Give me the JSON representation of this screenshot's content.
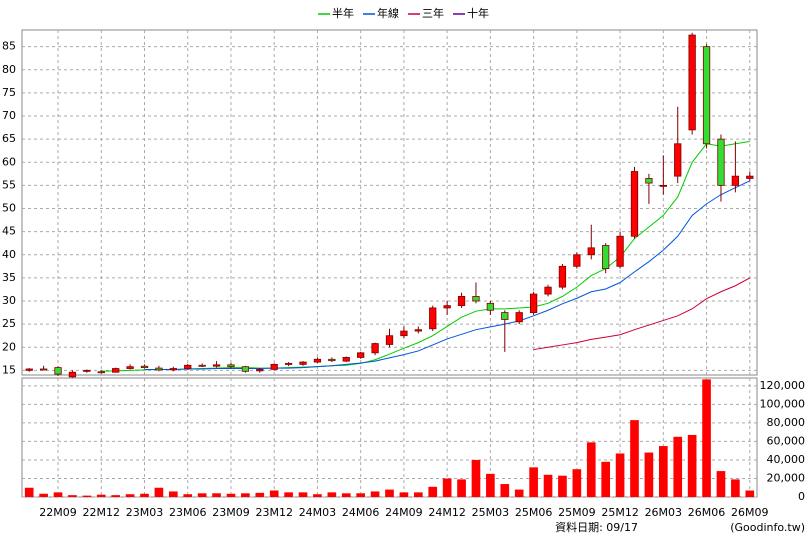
{
  "chart_data": {
    "type": "candlestick",
    "categories": [
      null,
      null,
      "22M09",
      null,
      null,
      "22M12",
      null,
      null,
      "23M03",
      null,
      null,
      "23M06",
      null,
      null,
      "23M09",
      null,
      null,
      "23M12",
      null,
      null,
      "24M03",
      null,
      null,
      "24M06",
      null,
      null,
      "24M09",
      null,
      null,
      "24M12",
      null,
      null,
      "25M03",
      null,
      null,
      "25M06",
      null,
      null,
      "25M09",
      null,
      null,
      "25M12",
      null,
      null,
      "26M03",
      null,
      null,
      "26M06",
      null,
      null,
      "26M09"
    ],
    "open": [
      15.0,
      15.3,
      15.6,
      13.6,
      14.8,
      14.7,
      14.6,
      15.4,
      15.9,
      15.5,
      15.1,
      15.4,
      16.1,
      15.9,
      16.2,
      15.8,
      14.9,
      15.2,
      16.3,
      16.3,
      16.8,
      17.4,
      17.0,
      17.8,
      18.8,
      20.6,
      22.5,
      23.5,
      24.0,
      28.5,
      29.0,
      31.0,
      29.5,
      27.5,
      25.5,
      27.5,
      31.5,
      33.0,
      37.5,
      40.0,
      42.0,
      37.5,
      44.0,
      56.5,
      55.0,
      57.0,
      67.0,
      85.0,
      65.0,
      55.0,
      56.5
    ],
    "high": [
      15.5,
      16.0,
      15.9,
      15.0,
      15.2,
      15.0,
      15.6,
      16.3,
      16.3,
      16.0,
      15.8,
      16.4,
      16.5,
      17.0,
      16.6,
      16.0,
      15.5,
      16.5,
      16.8,
      17.0,
      17.8,
      17.8,
      18.0,
      19.0,
      21.0,
      24.0,
      24.5,
      24.5,
      29.0,
      30.0,
      31.8,
      34.0,
      30.0,
      28.0,
      28.0,
      32.0,
      33.5,
      38.0,
      40.5,
      46.5,
      42.5,
      45.0,
      59.0,
      57.5,
      61.5,
      72.0,
      88.0,
      85.5,
      66.0,
      64.5,
      58.0
    ],
    "low": [
      14.7,
      15.0,
      13.8,
      13.4,
      14.5,
      14.3,
      14.5,
      15.2,
      15.4,
      14.8,
      14.8,
      15.1,
      15.7,
      15.6,
      15.4,
      14.5,
      14.5,
      15.0,
      15.9,
      16.0,
      16.5,
      16.8,
      16.8,
      17.5,
      18.3,
      20.0,
      22.0,
      23.0,
      23.5,
      27.0,
      28.5,
      29.5,
      27.0,
      19.0,
      25.0,
      27.0,
      31.0,
      32.5,
      37.0,
      39.0,
      36.0,
      37.0,
      43.5,
      51.0,
      53.0,
      55.5,
      66.0,
      63.0,
      51.5,
      53.5,
      56.0
    ],
    "close": [
      15.3,
      15.2,
      14.2,
      14.6,
      15.0,
      14.5,
      15.4,
      15.8,
      15.6,
      15.1,
      15.4,
      16.1,
      15.9,
      16.2,
      15.8,
      14.8,
      15.2,
      16.3,
      16.5,
      16.8,
      17.4,
      17.1,
      17.8,
      18.8,
      20.8,
      22.5,
      23.5,
      23.8,
      28.5,
      29.0,
      31.0,
      30.0,
      28.0,
      26.0,
      27.5,
      31.5,
      33.0,
      37.5,
      40.0,
      41.5,
      37.0,
      44.0,
      58.0,
      55.5,
      55.0,
      64.0,
      87.5,
      64.0,
      55.0,
      57.0,
      57.0
    ],
    "up_color": "#ff0000",
    "down_color": "#33dd33",
    "edge_color": "#800000",
    "series": [
      {
        "name": "半年",
        "color": "#00cc00",
        "values": [
          null,
          null,
          null,
          null,
          null,
          14.8,
          14.9,
          15.0,
          15.1,
          15.2,
          15.2,
          15.3,
          15.4,
          15.5,
          15.6,
          15.6,
          15.5,
          15.5,
          15.6,
          15.7,
          15.8,
          16.0,
          16.1,
          16.5,
          17.3,
          18.5,
          19.8,
          21.0,
          22.5,
          24.5,
          26.5,
          27.8,
          28.3,
          28.3,
          28.5,
          28.7,
          29.5,
          31,
          33,
          35.5,
          37,
          39.5,
          43.5,
          46,
          48.5,
          52.5,
          60,
          64,
          63.5,
          64,
          64.5
        ]
      },
      {
        "name": "年線",
        "color": "#0055dd",
        "values": [
          null,
          null,
          null,
          null,
          null,
          null,
          null,
          null,
          15.2,
          15.2,
          15.2,
          15.3,
          15.3,
          15.4,
          15.4,
          15.4,
          15.4,
          15.5,
          15.5,
          15.6,
          15.8,
          16.0,
          16.3,
          16.6,
          17,
          17.7,
          18.4,
          19.2,
          20.5,
          21.8,
          22.8,
          23.8,
          24.4,
          25.0,
          25.7,
          26.8,
          28,
          29.4,
          30.6,
          32,
          32.6,
          34,
          36.3,
          38.5,
          41,
          44,
          48.5,
          51,
          53,
          54.5,
          56
        ]
      },
      {
        "name": "三年",
        "color": "#cc0033",
        "values": [
          null,
          null,
          null,
          null,
          null,
          null,
          null,
          null,
          null,
          null,
          null,
          null,
          null,
          null,
          null,
          null,
          null,
          null,
          null,
          null,
          null,
          null,
          null,
          null,
          null,
          null,
          null,
          null,
          null,
          null,
          null,
          null,
          null,
          null,
          null,
          19.5,
          20,
          20.5,
          21,
          21.7,
          22.2,
          22.7,
          23.8,
          24.8,
          25.8,
          26.8,
          28.3,
          30.5,
          32,
          33.3,
          35
        ]
      },
      {
        "name": "十年",
        "color": "#660099",
        "values": [
          null,
          null,
          null,
          null,
          null,
          null,
          null,
          null,
          null,
          null,
          null,
          null,
          null,
          null,
          null,
          null,
          null,
          null,
          null,
          null,
          null,
          null,
          null,
          null,
          null,
          null,
          null,
          null,
          null,
          null,
          null,
          null,
          null,
          null,
          null,
          null,
          null,
          null,
          null,
          null,
          null,
          null,
          null,
          null,
          null,
          null,
          null,
          null,
          null,
          null,
          null
        ]
      }
    ],
    "ylim": [
      14,
      88.6
    ],
    "yticks": [
      15,
      20,
      25,
      30,
      35,
      40,
      45,
      50,
      55,
      60,
      65,
      70,
      75,
      80,
      85
    ],
    "grid": true,
    "volume": {
      "color": "#ff0000",
      "values": [
        10000,
        3500,
        5000,
        2000,
        1500,
        2500,
        2000,
        3000,
        3500,
        10000,
        6000,
        3000,
        4000,
        4000,
        3500,
        4000,
        4500,
        7000,
        5000,
        5000,
        3000,
        5000,
        4000,
        4000,
        6000,
        8000,
        5000,
        5000,
        11000,
        20000,
        19000,
        40000,
        25000,
        14000,
        8000,
        32000,
        24000,
        23000,
        30000,
        59000,
        38000,
        47000,
        83000,
        48000,
        55000,
        65000,
        67000,
        127000,
        28000,
        19000,
        7000
      ],
      "ylim": [
        0,
        128500
      ],
      "yticks": [
        0,
        {
          "value": 20000,
          "label": "20,000"
        },
        {
          "value": 40000,
          "label": "40,000"
        },
        {
          "value": 60000,
          "label": "60,000"
        },
        {
          "value": 80000,
          "label": "80,000"
        },
        {
          "value": 100000,
          "label": "100,000"
        },
        {
          "value": 120000,
          "label": "120,000"
        }
      ]
    },
    "note": "資料日期: 09/17",
    "source": "(Goodinfo.tw)"
  }
}
